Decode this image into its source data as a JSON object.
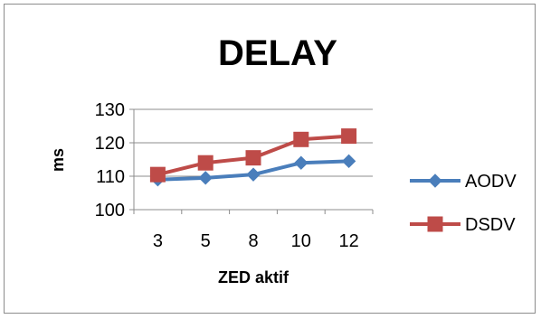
{
  "chart_data": {
    "type": "line",
    "title": "DELAY",
    "xlabel": "ZED aktif",
    "ylabel": "ms",
    "categories": [
      "3",
      "5",
      "8",
      "10",
      "12"
    ],
    "ylim": [
      100,
      130
    ],
    "yticks": [
      100,
      110,
      120,
      130
    ],
    "grid": true,
    "legend_position": "right",
    "series": [
      {
        "name": "AODV",
        "values": [
          109,
          109.5,
          110.5,
          114,
          114.5
        ],
        "color": "#4a7ebb",
        "marker": "diamond"
      },
      {
        "name": "DSDV",
        "values": [
          110.5,
          114,
          115.5,
          121,
          122
        ],
        "color": "#be4b48",
        "marker": "square"
      }
    ]
  }
}
